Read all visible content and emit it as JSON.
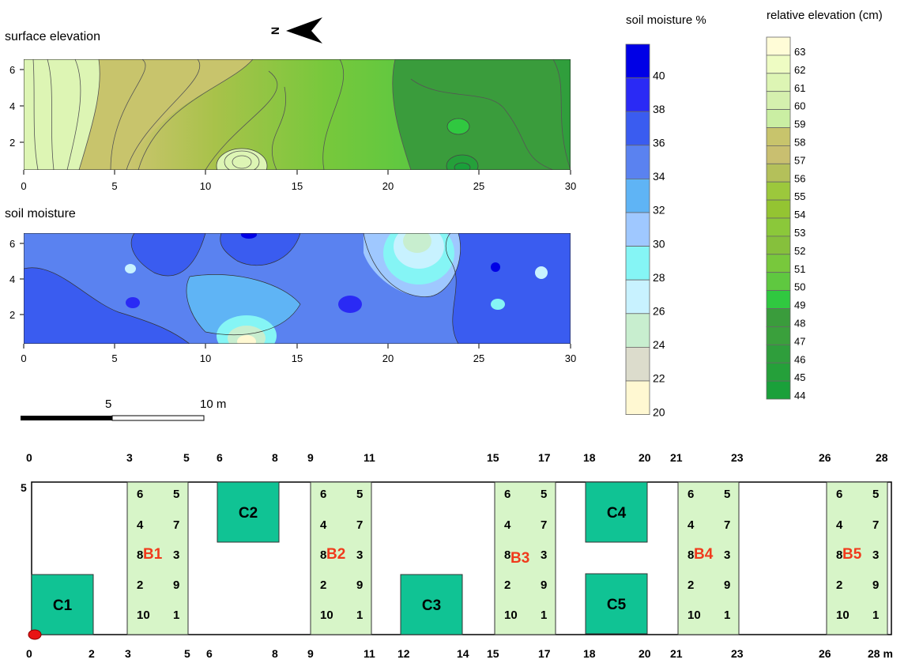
{
  "maps": {
    "elevation": {
      "title": "surface elevation",
      "xticks": [
        "0",
        "5",
        "10",
        "15",
        "20",
        "25",
        "30"
      ],
      "yticks": [
        "2",
        "4",
        "6"
      ]
    },
    "moisture": {
      "title": "soil moisture",
      "xticks": [
        "0",
        "5",
        "10",
        "15",
        "20",
        "25",
        "30"
      ],
      "yticks": [
        "2",
        "4",
        "6"
      ]
    }
  },
  "north_label": "N",
  "scale_bar": {
    "labels": [
      "5",
      "10 m"
    ]
  },
  "moisture_legend": {
    "title": "soil moisture %",
    "labels": [
      "40",
      "38",
      "36",
      "34",
      "32",
      "30",
      "28",
      "26",
      "24",
      "22",
      "20"
    ],
    "colors": [
      "#0000e6",
      "#2a2af5",
      "#3a5cf0",
      "#5a82f0",
      "#5fb4f5",
      "#9fc8ff",
      "#85f5f5",
      "#c8f2ff",
      "#c8eecf",
      "#dcdccc",
      "#fff8d2"
    ]
  },
  "elevation_legend": {
    "title": "relative elevation  (cm)",
    "labels": [
      "63",
      "62",
      "61",
      "60",
      "59",
      "58",
      "57",
      "56",
      "55",
      "54",
      "53",
      "52",
      "51",
      "50",
      "49",
      "48",
      "47",
      "46",
      "45",
      "44"
    ],
    "colors": [
      "#fffcd7",
      "#eefcc3",
      "#ddf5b4",
      "#d5f0ae",
      "#caeea3",
      "#c8c46c",
      "#c9bf70",
      "#b4c05a",
      "#9cc83c",
      "#94c432",
      "#8bc83a",
      "#86c03c",
      "#78c83c",
      "#5fc840",
      "#30c840",
      "#3a9c3c",
      "#3aa03c",
      "#2f9e3c",
      "#25a03a",
      "#1aa03a"
    ]
  },
  "plot_layout": {
    "top_ticks": [
      "0",
      "3",
      "5",
      "6",
      "8",
      "9",
      "11",
      "15",
      "17",
      "18",
      "20",
      "21",
      "23",
      "26",
      "28"
    ],
    "bottom_ticks": [
      "0",
      "2",
      "3",
      "5",
      "6",
      "8",
      "9",
      "11",
      "12",
      "14",
      "15",
      "17",
      "18",
      "20",
      "21",
      "23",
      "26",
      "28 m"
    ],
    "y_label": "5",
    "control_plots": [
      "C1",
      "C2",
      "C3",
      "C4",
      "C5"
    ],
    "blocks": [
      {
        "name": "B1",
        "cells": [
          "6",
          "5",
          "4",
          "7",
          "8",
          "3",
          "2",
          "9",
          "10",
          "1"
        ]
      },
      {
        "name": "B2",
        "cells": [
          "6",
          "5",
          "4",
          "7",
          "8",
          "3",
          "2",
          "9",
          "10",
          "1"
        ]
      },
      {
        "name": "B3",
        "cells": [
          "6",
          "5",
          "4",
          "7",
          "8",
          "3",
          "2",
          "9",
          "10",
          "1"
        ]
      },
      {
        "name": "B4",
        "cells": [
          "6",
          "5",
          "4",
          "7",
          "8",
          "3",
          "2",
          "9",
          "10",
          "1"
        ]
      },
      {
        "name": "B5",
        "cells": [
          "6",
          "5",
          "4",
          "7",
          "8",
          "3",
          "2",
          "9",
          "10",
          "1"
        ]
      }
    ],
    "colors": {
      "block_fill": "#d7f5c8",
      "control_fill": "#10c394",
      "block_label": "#f03a1c",
      "origin_marker": "#e81414"
    }
  }
}
